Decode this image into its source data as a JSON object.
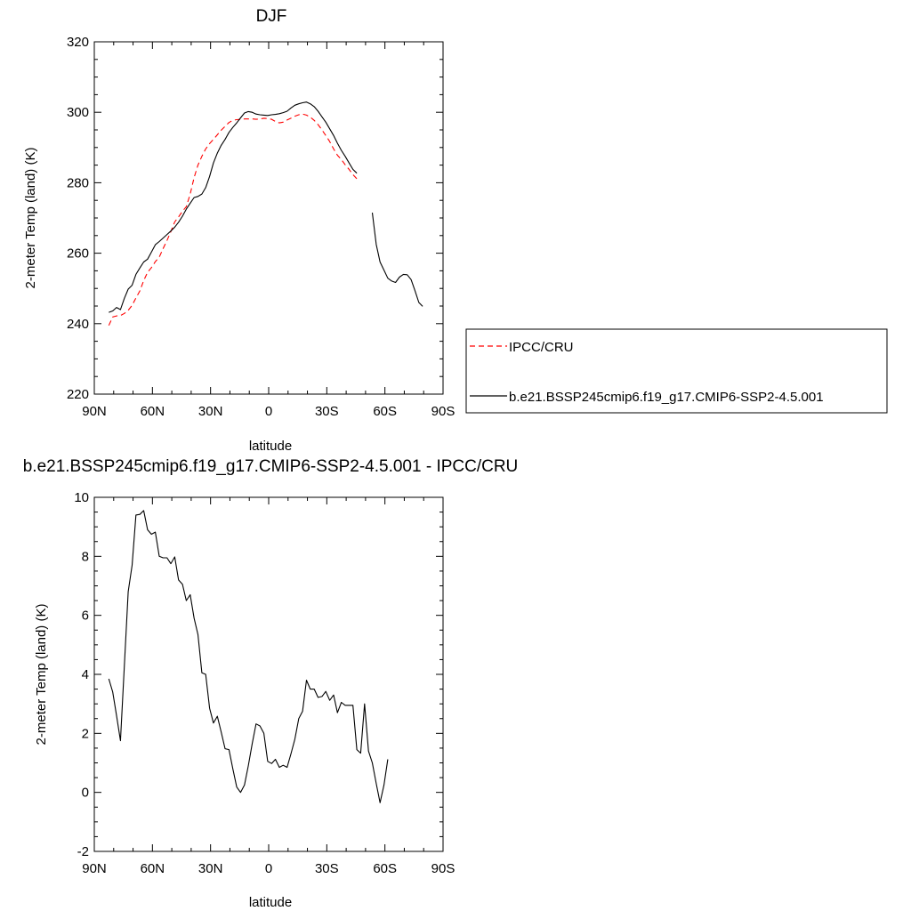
{
  "chart_data": [
    {
      "type": "line",
      "title": "DJF",
      "xlabel": "latitude",
      "ylabel": "2-meter Temp (land) (K)",
      "xlim": [
        90,
        -90
      ],
      "ylim": [
        220,
        320
      ],
      "yticks": [
        220,
        240,
        260,
        280,
        300,
        320
      ],
      "xticks": [
        {
          "value": 90,
          "label": "90N"
        },
        {
          "value": 60,
          "label": "60N"
        },
        {
          "value": 30,
          "label": "30N"
        },
        {
          "value": 0,
          "label": "0"
        },
        {
          "value": -30,
          "label": "30S"
        },
        {
          "value": -60,
          "label": "60S"
        },
        {
          "value": -90,
          "label": "90S"
        }
      ],
      "grid": false,
      "legend": {
        "placement": "right",
        "entries": [
          "IPCC/CRU",
          "b.e21.BSSP245cmip6.f19_g17.CMIP6-SSP2-4.5.001"
        ]
      },
      "series": [
        {
          "name": "IPCC/CRU",
          "color": "#ff0000",
          "dash": "dashed",
          "points": [
            [
              82.5,
              239.5
            ],
            [
              80.5,
              241.9
            ],
            [
              78.5,
              242.2
            ],
            [
              76.5,
              242.3
            ],
            [
              74.5,
              242.9
            ],
            [
              72.5,
              243.8
            ],
            [
              70.5,
              245.2
            ],
            [
              68.5,
              247.3
            ],
            [
              66.5,
              249.3
            ],
            [
              64.5,
              252.2
            ],
            [
              62.5,
              254.6
            ],
            [
              60.5,
              255.9
            ],
            [
              58.5,
              257.6
            ],
            [
              56.5,
              258.9
            ],
            [
              54.5,
              261.3
            ],
            [
              52.5,
              263.6
            ],
            [
              50.5,
              266.1
            ],
            [
              48.5,
              268.9
            ],
            [
              46.5,
              270.3
            ],
            [
              44.5,
              271.9
            ],
            [
              42.5,
              273.2
            ],
            [
              40.5,
              276.8
            ],
            [
              38.5,
              281.5
            ],
            [
              36.5,
              285.0
            ],
            [
              34.5,
              287.5
            ],
            [
              32.5,
              289.6
            ],
            [
              30.5,
              291.1
            ],
            [
              28.5,
              292.3
            ],
            [
              26.5,
              293.6
            ],
            [
              24.5,
              294.9
            ],
            [
              22.5,
              296.0
            ],
            [
              20.5,
              297.1
            ],
            [
              18.5,
              297.7
            ],
            [
              16.5,
              297.9
            ],
            [
              14.5,
              298.0
            ],
            [
              12.5,
              298.1
            ],
            [
              10.5,
              298.1
            ],
            [
              8.5,
              298.1
            ],
            [
              6.5,
              298.0
            ],
            [
              4.5,
              298.1
            ],
            [
              2.5,
              298.3
            ],
            [
              0.5,
              298.2
            ],
            [
              -1.5,
              298.0
            ],
            [
              -3.5,
              297.4
            ],
            [
              -5.5,
              297.0
            ],
            [
              -7.5,
              297.2
            ],
            [
              -9.5,
              297.8
            ],
            [
              -11.5,
              298.3
            ],
            [
              -13.5,
              298.9
            ],
            [
              -15.5,
              299.3
            ],
            [
              -17.5,
              299.5
            ],
            [
              -19.5,
              299.2
            ],
            [
              -21.5,
              298.6
            ],
            [
              -23.5,
              297.7
            ],
            [
              -25.5,
              296.5
            ],
            [
              -27.5,
              295.0
            ],
            [
              -29.5,
              293.4
            ],
            [
              -31.5,
              291.7
            ],
            [
              -33.5,
              289.6
            ],
            [
              -35.5,
              287.8
            ],
            [
              -37.5,
              286.6
            ],
            [
              -39.5,
              285.1
            ],
            [
              -41.5,
              283.8
            ],
            [
              -43.5,
              282.3
            ],
            [
              -45.5,
              281.1
            ]
          ]
        },
        {
          "name": "b.e21.BSSP245cmip6.f19_g17.CMIP6-SSP2-4.5.001",
          "color": "#000000",
          "dash": "solid",
          "segments": [
            [
              [
                82.5,
                243.2
              ],
              [
                80.5,
                243.6
              ],
              [
                78.5,
                244.6
              ],
              [
                76.5,
                244.0
              ],
              [
                74.5,
                247.2
              ],
              [
                72.5,
                249.8
              ],
              [
                70.5,
                250.9
              ],
              [
                68.5,
                254.0
              ],
              [
                66.5,
                255.8
              ],
              [
                64.5,
                257.5
              ],
              [
                62.5,
                258.3
              ],
              [
                60.5,
                260.3
              ],
              [
                58.5,
                262.4
              ],
              [
                56.5,
                263.3
              ],
              [
                54.5,
                264.3
              ],
              [
                52.5,
                265.3
              ],
              [
                50.5,
                266.3
              ],
              [
                48.5,
                267.4
              ],
              [
                46.5,
                268.8
              ],
              [
                44.5,
                270.5
              ],
              [
                42.5,
                272.5
              ],
              [
                40.5,
                274.2
              ],
              [
                38.5,
                275.8
              ],
              [
                36.5,
                276.1
              ],
              [
                34.5,
                276.8
              ],
              [
                32.5,
                278.6
              ],
              [
                30.5,
                281.8
              ],
              [
                28.5,
                285.6
              ],
              [
                26.5,
                288.4
              ],
              [
                24.5,
                290.6
              ],
              [
                22.5,
                292.3
              ],
              [
                20.5,
                294.3
              ],
              [
                18.5,
                295.7
              ],
              [
                16.5,
                297.0
              ],
              [
                14.5,
                298.4
              ],
              [
                12.5,
                299.8
              ],
              [
                10.5,
                300.2
              ],
              [
                8.5,
                300.0
              ],
              [
                6.5,
                299.5
              ],
              [
                4.5,
                299.3
              ],
              [
                2.5,
                299.2
              ],
              [
                0.5,
                299.1
              ],
              [
                -1.5,
                299.3
              ],
              [
                -3.5,
                299.4
              ],
              [
                -5.5,
                299.6
              ],
              [
                -7.5,
                299.9
              ],
              [
                -9.5,
                300.3
              ],
              [
                -11.5,
                301.2
              ],
              [
                -13.5,
                302.0
              ],
              [
                -15.5,
                302.4
              ],
              [
                -17.5,
                302.7
              ],
              [
                -19.5,
                302.9
              ],
              [
                -21.5,
                302.4
              ],
              [
                -23.5,
                301.6
              ],
              [
                -25.5,
                300.3
              ],
              [
                -27.5,
                298.7
              ],
              [
                -29.5,
                297.2
              ],
              [
                -31.5,
                295.3
              ],
              [
                -33.5,
                293.4
              ],
              [
                -35.5,
                291.2
              ],
              [
                -37.5,
                289.2
              ],
              [
                -39.5,
                287.5
              ],
              [
                -41.5,
                285.6
              ],
              [
                -43.5,
                283.8
              ],
              [
                -45.5,
                282.7
              ]
            ],
            [
              [
                -53.5,
                271.5
              ],
              [
                -55.5,
                262.5
              ],
              [
                -57.5,
                257.5
              ],
              [
                -59.5,
                255.2
              ],
              [
                -61.5,
                252.9
              ],
              [
                -63.5,
                252.1
              ],
              [
                -65.5,
                251.7
              ],
              [
                -67.5,
                253.2
              ],
              [
                -69.5,
                254.0
              ],
              [
                -71.5,
                253.9
              ],
              [
                -73.5,
                252.5
              ],
              [
                -75.5,
                249.4
              ],
              [
                -77.5,
                246.0
              ],
              [
                -79.5,
                244.9
              ]
            ]
          ]
        }
      ]
    },
    {
      "type": "line",
      "title": "b.e21.BSSP245cmip6.f19_g17.CMIP6-SSP2-4.5.001 - IPCC/CRU",
      "xlabel": "latitude",
      "ylabel": "2-meter Temp (land) (K)",
      "xlim": [
        90,
        -90
      ],
      "ylim": [
        -2,
        10
      ],
      "yticks": [
        -2,
        0,
        2,
        4,
        6,
        8,
        10
      ],
      "xticks": [
        {
          "value": 90,
          "label": "90N"
        },
        {
          "value": 60,
          "label": "60N"
        },
        {
          "value": 30,
          "label": "30N"
        },
        {
          "value": 0,
          "label": "0"
        },
        {
          "value": -30,
          "label": "30S"
        },
        {
          "value": -60,
          "label": "60S"
        },
        {
          "value": -90,
          "label": "90S"
        }
      ],
      "grid": false,
      "series": [
        {
          "color": "#000000",
          "dash": "solid",
          "points": [
            [
              82.5,
              3.85
            ],
            [
              80.5,
              3.4
            ],
            [
              78.5,
              2.6
            ],
            [
              76.5,
              1.75
            ],
            [
              74.5,
              4.3
            ],
            [
              72.5,
              6.8
            ],
            [
              70.5,
              7.7
            ],
            [
              68.5,
              9.4
            ],
            [
              66.5,
              9.42
            ],
            [
              64.5,
              9.55
            ],
            [
              62.5,
              8.9
            ],
            [
              60.5,
              8.75
            ],
            [
              58.5,
              8.82
            ],
            [
              56.5,
              8.0
            ],
            [
              54.5,
              7.95
            ],
            [
              52.5,
              7.95
            ],
            [
              50.5,
              7.75
            ],
            [
              48.5,
              7.98
            ],
            [
              46.5,
              7.2
            ],
            [
              44.5,
              7.05
            ],
            [
              42.5,
              6.5
            ],
            [
              40.5,
              6.7
            ],
            [
              38.5,
              5.9
            ],
            [
              36.5,
              5.35
            ],
            [
              34.5,
              4.05
            ],
            [
              32.5,
              4.0
            ],
            [
              30.5,
              2.85
            ],
            [
              28.5,
              2.35
            ],
            [
              26.5,
              2.58
            ],
            [
              24.5,
              2.05
            ],
            [
              22.5,
              1.48
            ],
            [
              20.5,
              1.45
            ],
            [
              18.5,
              0.8
            ],
            [
              16.5,
              0.18
            ],
            [
              14.5,
              0.0
            ],
            [
              12.5,
              0.25
            ],
            [
              10.5,
              0.9
            ],
            [
              8.5,
              1.65
            ],
            [
              6.5,
              2.32
            ],
            [
              4.5,
              2.25
            ],
            [
              2.5,
              2.0
            ],
            [
              0.5,
              1.05
            ],
            [
              -1.5,
              0.98
            ],
            [
              -3.5,
              1.12
            ],
            [
              -5.5,
              0.85
            ],
            [
              -7.5,
              0.92
            ],
            [
              -9.5,
              0.85
            ],
            [
              -11.5,
              1.3
            ],
            [
              -13.5,
              1.8
            ],
            [
              -15.5,
              2.5
            ],
            [
              -17.5,
              2.75
            ],
            [
              -19.5,
              3.8
            ],
            [
              -21.5,
              3.5
            ],
            [
              -23.5,
              3.5
            ],
            [
              -25.5,
              3.22
            ],
            [
              -27.5,
              3.25
            ],
            [
              -29.5,
              3.42
            ],
            [
              -31.5,
              3.12
            ],
            [
              -33.5,
              3.3
            ],
            [
              -35.5,
              2.7
            ],
            [
              -37.5,
              3.05
            ],
            [
              -39.5,
              2.95
            ],
            [
              -41.5,
              2.95
            ],
            [
              -43.5,
              2.95
            ],
            [
              -45.5,
              1.45
            ],
            [
              -47.5,
              1.33
            ],
            [
              -49.5,
              3.0
            ],
            [
              -51.5,
              1.4
            ],
            [
              -53.5,
              1.0
            ],
            [
              -55.5,
              0.3
            ],
            [
              -57.5,
              -0.35
            ],
            [
              -59.5,
              0.25
            ],
            [
              -61.5,
              1.12
            ]
          ]
        }
      ]
    }
  ]
}
